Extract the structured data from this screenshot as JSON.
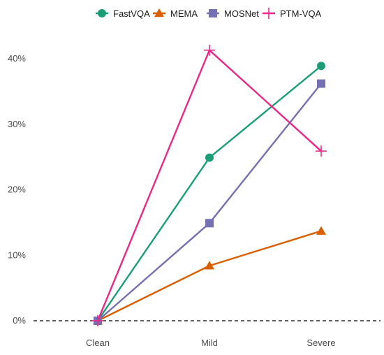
{
  "chart_data": {
    "type": "line",
    "title": "",
    "xlabel": "",
    "ylabel": "",
    "categories": [
      "Clean",
      "Mild",
      "Severe"
    ],
    "y_tick_labels": [
      "0%",
      "10%",
      "20%",
      "30%",
      "40%"
    ],
    "y_ticks": [
      0,
      10,
      20,
      30,
      40
    ],
    "ylim": [
      0,
      42
    ],
    "y_unit": "%",
    "grid": false,
    "legend_position": "top",
    "reference_line": {
      "y": 0,
      "style": "dashed",
      "color": "#000000"
    },
    "series": [
      {
        "name": "FastVQA",
        "values": [
          0,
          24.9,
          38.9
        ],
        "color": "#1b9e77",
        "marker": "circle"
      },
      {
        "name": "MEMA",
        "values": [
          0,
          8.4,
          13.7
        ],
        "color": "#d95f02",
        "marker": "triangle"
      },
      {
        "name": "MOSNet",
        "values": [
          0,
          14.9,
          36.2
        ],
        "color": "#7570b3",
        "marker": "square"
      },
      {
        "name": "PTM-VQA",
        "values": [
          0,
          41.3,
          25.9
        ],
        "color": "#e7298a",
        "marker": "plus"
      }
    ]
  }
}
